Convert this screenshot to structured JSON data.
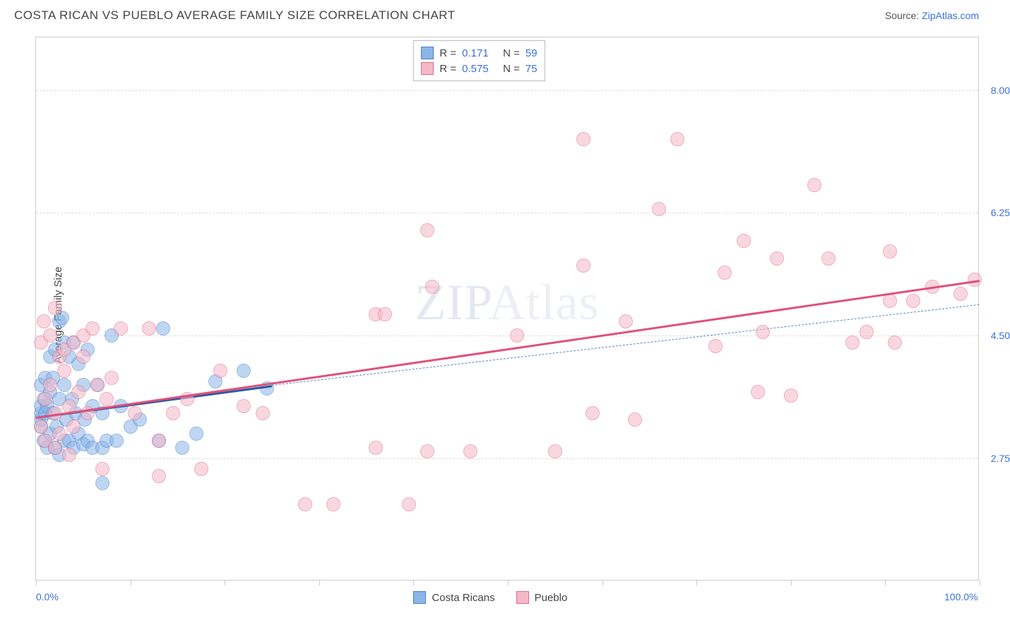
{
  "title": "COSTA RICAN VS PUEBLO AVERAGE FAMILY SIZE CORRELATION CHART",
  "source_label": "Source: ",
  "source_link_text": "ZipAtlas.com",
  "watermark": "ZIPAtlas",
  "chart": {
    "type": "scatter",
    "background_color": "#ffffff",
    "border_color": "#cccccc",
    "grid_color": "#dddddd",
    "xlim": [
      0,
      100
    ],
    "ylim": [
      1.0,
      8.75
    ],
    "x_ticks": [
      0,
      10,
      20,
      30,
      40,
      50,
      60,
      70,
      80,
      90,
      100
    ],
    "x_tick_labels_shown": {
      "0": "0.0%",
      "100": "100.0%"
    },
    "y_ticks": [
      2.75,
      4.5,
      6.25,
      8.0
    ],
    "y_tick_labels": [
      "2.75",
      "4.50",
      "6.25",
      "8.00"
    ],
    "y_axis_title": "Average Family Size",
    "point_radius": 10,
    "point_opacity": 0.55,
    "series": [
      {
        "name": "Costa Ricans",
        "fill_color": "#8bb6e8",
        "stroke_color": "#4a7fc9",
        "r_value": "0.171",
        "n_value": "59",
        "trend": {
          "x1": 0,
          "y1": 3.35,
          "x2": 25,
          "y2": 3.8,
          "solid_color": "#2c5aa0",
          "solid_width": 3,
          "dash_x2": 100,
          "dash_y2": 4.95,
          "dash_color": "#5a85c7",
          "dash_width": 1.6
        },
        "points": [
          [
            0.5,
            3.4
          ],
          [
            0.5,
            3.2
          ],
          [
            0.5,
            3.5
          ],
          [
            0.5,
            3.3
          ],
          [
            0.5,
            3.8
          ],
          [
            0.8,
            3.0
          ],
          [
            0.8,
            3.6
          ],
          [
            1.0,
            3.4
          ],
          [
            1.0,
            3.9
          ],
          [
            1.2,
            2.9
          ],
          [
            1.2,
            3.5
          ],
          [
            1.5,
            3.7
          ],
          [
            1.5,
            4.2
          ],
          [
            1.5,
            3.1
          ],
          [
            1.8,
            3.4
          ],
          [
            1.8,
            3.9
          ],
          [
            2.0,
            2.9
          ],
          [
            2.0,
            4.3
          ],
          [
            2.2,
            3.2
          ],
          [
            2.5,
            4.7
          ],
          [
            2.5,
            3.6
          ],
          [
            2.5,
            2.8
          ],
          [
            2.8,
            4.75
          ],
          [
            3.0,
            3.0
          ],
          [
            3.0,
            3.8
          ],
          [
            3.0,
            4.4
          ],
          [
            3.2,
            3.3
          ],
          [
            3.5,
            4.2
          ],
          [
            3.5,
            3.0
          ],
          [
            3.8,
            3.6
          ],
          [
            4.0,
            4.4
          ],
          [
            4.0,
            2.9
          ],
          [
            4.2,
            3.4
          ],
          [
            4.5,
            3.1
          ],
          [
            4.5,
            4.1
          ],
          [
            5.0,
            3.8
          ],
          [
            5.0,
            2.95
          ],
          [
            5.2,
            3.3
          ],
          [
            5.5,
            4.3
          ],
          [
            5.5,
            3.0
          ],
          [
            6.0,
            3.5
          ],
          [
            6.0,
            2.9
          ],
          [
            6.5,
            3.8
          ],
          [
            7.0,
            3.4
          ],
          [
            7.0,
            2.9
          ],
          [
            7.0,
            2.4
          ],
          [
            7.5,
            3.0
          ],
          [
            8.0,
            4.5
          ],
          [
            8.5,
            3.0
          ],
          [
            9.0,
            3.5
          ],
          [
            10.0,
            3.2
          ],
          [
            11.0,
            3.3
          ],
          [
            13.0,
            3.0
          ],
          [
            13.5,
            4.6
          ],
          [
            15.5,
            2.9
          ],
          [
            17.0,
            3.1
          ],
          [
            19.0,
            3.85
          ],
          [
            22.0,
            4.0
          ],
          [
            24.5,
            3.75
          ]
        ]
      },
      {
        "name": "Pueblo",
        "fill_color": "#f5b8c8",
        "stroke_color": "#e0698c",
        "r_value": "0.575",
        "n_value": "75",
        "trend": {
          "x1": 0,
          "y1": 3.35,
          "x2": 100,
          "y2": 5.3,
          "solid_color": "#e0507a",
          "solid_width": 3
        },
        "points": [
          [
            0.5,
            4.4
          ],
          [
            0.5,
            3.2
          ],
          [
            0.8,
            4.7
          ],
          [
            1.0,
            3.6
          ],
          [
            1.0,
            3.0
          ],
          [
            1.5,
            4.5
          ],
          [
            1.5,
            3.8
          ],
          [
            2.0,
            2.9
          ],
          [
            2.0,
            3.4
          ],
          [
            2.0,
            4.9
          ],
          [
            2.5,
            4.2
          ],
          [
            2.5,
            3.1
          ],
          [
            3.0,
            4.0
          ],
          [
            3.0,
            4.3
          ],
          [
            3.5,
            3.5
          ],
          [
            3.5,
            2.8
          ],
          [
            4.0,
            4.4
          ],
          [
            4.0,
            3.2
          ],
          [
            4.5,
            3.7
          ],
          [
            5.0,
            4.2
          ],
          [
            5.0,
            4.5
          ],
          [
            5.5,
            3.4
          ],
          [
            6.0,
            4.6
          ],
          [
            6.5,
            3.8
          ],
          [
            7.0,
            2.6
          ],
          [
            7.5,
            3.6
          ],
          [
            8.0,
            3.9
          ],
          [
            9.0,
            4.6
          ],
          [
            10.5,
            3.4
          ],
          [
            12.0,
            4.6
          ],
          [
            13.0,
            3.0
          ],
          [
            13.0,
            2.5
          ],
          [
            14.5,
            3.4
          ],
          [
            16.0,
            3.6
          ],
          [
            17.5,
            2.6
          ],
          [
            19.5,
            4.0
          ],
          [
            22.0,
            3.5
          ],
          [
            24.0,
            3.4
          ],
          [
            28.5,
            2.1
          ],
          [
            31.5,
            2.1
          ],
          [
            36.0,
            4.8
          ],
          [
            36.0,
            2.9
          ],
          [
            37.0,
            4.8
          ],
          [
            39.5,
            2.1
          ],
          [
            41.5,
            6.0
          ],
          [
            41.5,
            2.85
          ],
          [
            42.0,
            5.2
          ],
          [
            46.0,
            2.85
          ],
          [
            51.0,
            4.5
          ],
          [
            55.0,
            2.85
          ],
          [
            58.0,
            7.3
          ],
          [
            58.0,
            5.5
          ],
          [
            59.0,
            3.4
          ],
          [
            62.5,
            4.7
          ],
          [
            63.5,
            3.3
          ],
          [
            66.0,
            6.3
          ],
          [
            68.0,
            7.3
          ],
          [
            72.0,
            4.35
          ],
          [
            73.0,
            5.4
          ],
          [
            75.0,
            5.85
          ],
          [
            76.5,
            3.7
          ],
          [
            77.0,
            4.55
          ],
          [
            78.5,
            5.6
          ],
          [
            80.0,
            3.65
          ],
          [
            82.5,
            6.65
          ],
          [
            84.0,
            5.6
          ],
          [
            86.5,
            4.4
          ],
          [
            88.0,
            4.55
          ],
          [
            90.5,
            5.7
          ],
          [
            90.5,
            5.0
          ],
          [
            91.0,
            4.4
          ],
          [
            93.0,
            5.0
          ],
          [
            95.0,
            5.2
          ],
          [
            98.0,
            5.1
          ],
          [
            99.5,
            5.3
          ]
        ]
      }
    ],
    "legend_box": {
      "r_label": "R =",
      "n_label": "N =",
      "value_color": "#3b6fd6",
      "text_color": "#444444"
    },
    "bottom_legend_labels": [
      "Costa Ricans",
      "Pueblo"
    ]
  }
}
